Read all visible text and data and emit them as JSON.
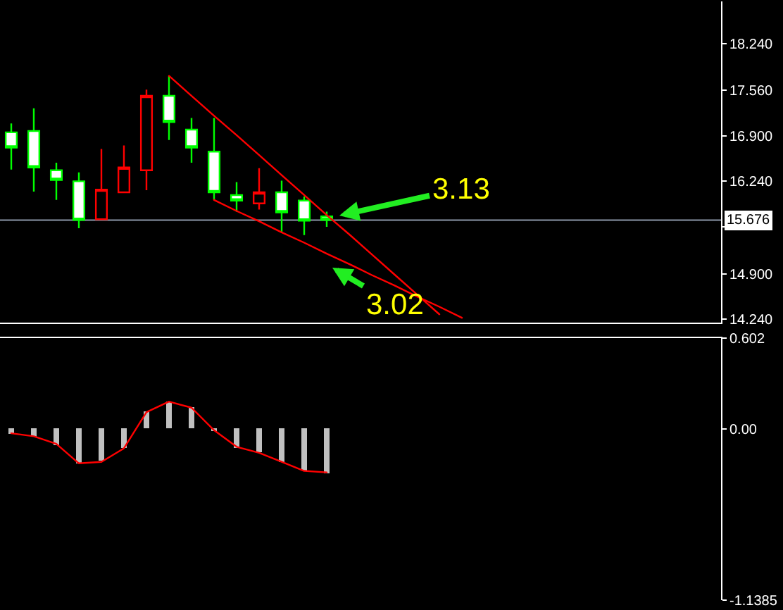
{
  "chart_data": [
    {
      "type": "candlestick",
      "categories": [
        null,
        null,
        null,
        null,
        null,
        null,
        null,
        null,
        null,
        null,
        null,
        null,
        null,
        null,
        null,
        null,
        null,
        null,
        null,
        null,
        null,
        null,
        null,
        null,
        null,
        null,
        null,
        null,
        null,
        null,
        null,
        null
      ],
      "ohlc": [
        [
          16.95,
          17.08,
          16.41,
          16.73
        ],
        [
          16.97,
          17.3,
          16.09,
          16.44
        ],
        [
          16.4,
          16.51,
          15.97,
          16.26
        ],
        [
          16.24,
          16.37,
          15.56,
          15.68
        ],
        [
          15.69,
          16.71,
          15.68,
          16.12
        ],
        [
          16.08,
          16.76,
          16.08,
          16.44
        ],
        [
          16.4,
          17.57,
          16.11,
          17.48
        ],
        [
          17.48,
          17.77,
          16.84,
          17.1
        ],
        [
          16.99,
          17.16,
          16.51,
          16.73
        ],
        [
          16.67,
          17.16,
          15.97,
          16.08
        ],
        [
          16.04,
          16.23,
          15.8,
          15.96
        ],
        [
          15.92,
          16.43,
          15.83,
          16.08
        ],
        [
          16.08,
          16.25,
          15.49,
          15.79
        ],
        [
          15.96,
          16.02,
          15.46,
          15.67
        ],
        [
          15.73,
          15.8,
          15.58,
          15.68
        ],
        null,
        null,
        null,
        null,
        null,
        null,
        null,
        null,
        null,
        null,
        null,
        null,
        null,
        null,
        null,
        null,
        null
      ],
      "colors": [
        "#00ff00",
        "#00ff00",
        "#00ff00",
        "#00ff00",
        "#ff0000",
        "#ff0000",
        "#ff0000",
        "#00ff00",
        "#00ff00",
        "#00ff00",
        "#00ff00",
        "#ff0000",
        "#00ff00",
        "#00ff00",
        "#00ff00",
        null,
        null,
        null,
        null,
        null,
        null,
        null,
        null,
        null,
        null,
        null,
        null,
        null,
        null,
        null,
        null,
        null
      ],
      "series": [
        {
          "type": "line",
          "color": "#ff0000",
          "values": [
            null,
            null,
            null,
            null,
            null,
            null,
            null,
            17.77,
            17.48,
            17.19,
            16.91,
            16.62,
            16.33,
            16.04,
            15.75,
            15.47,
            15.18,
            14.89,
            14.6,
            14.31,
            null,
            null,
            null,
            null,
            null,
            null,
            null,
            null,
            null,
            null,
            null,
            null
          ]
        },
        {
          "type": "line",
          "color": "#ff0000",
          "values": [
            null,
            null,
            null,
            null,
            null,
            null,
            null,
            null,
            null,
            15.97,
            15.81,
            15.66,
            15.5,
            15.35,
            15.19,
            15.04,
            14.88,
            14.73,
            14.57,
            14.42,
            14.26,
            null,
            null,
            null,
            null,
            null,
            null,
            null,
            null,
            null,
            null,
            null
          ]
        }
      ],
      "ylim": [
        14.19,
        18.85
      ],
      "yticks": [
        {
          "value": 18.24,
          "label": "18.240"
        },
        {
          "value": 17.56,
          "label": "17.560"
        },
        {
          "value": 16.9,
          "label": "16.900"
        },
        {
          "value": 16.24,
          "label": "16.240"
        },
        {
          "value": 15.58,
          "label": null
        },
        {
          "value": 14.9,
          "label": "14.900"
        },
        {
          "value": 14.24,
          "label": "14.240"
        }
      ],
      "ref_lines": [
        {
          "axis": "y",
          "value": 15.676,
          "label": "15.676",
          "color": "#8c96a8"
        }
      ],
      "annotations": [
        "3.13",
        "3.02"
      ],
      "tick_labels": "y"
    },
    {
      "type": "bar",
      "categories": [
        null,
        null,
        null,
        null,
        null,
        null,
        null,
        null,
        null,
        null,
        null,
        null,
        null,
        null,
        null,
        null,
        null,
        null,
        null,
        null,
        null,
        null,
        null,
        null,
        null,
        null,
        null,
        null,
        null,
        null,
        null,
        null
      ],
      "series": [
        {
          "type": "bar",
          "color": "#c0c0c0",
          "values": [
            -0.03,
            -0.05,
            -0.11,
            -0.23,
            -0.21,
            -0.13,
            0.12,
            0.18,
            0.14,
            -0.02,
            -0.13,
            -0.16,
            -0.22,
            -0.28,
            -0.3,
            null,
            null,
            null,
            null,
            null,
            null,
            null,
            null,
            null,
            null,
            null,
            null,
            null,
            null,
            null,
            null,
            null
          ]
        },
        {
          "type": "line",
          "color": "#ff0000",
          "values": [
            -0.03,
            -0.05,
            -0.1,
            -0.23,
            -0.22,
            -0.13,
            0.11,
            0.18,
            0.14,
            -0.01,
            -0.12,
            -0.16,
            -0.22,
            -0.28,
            -0.29,
            null,
            null,
            null,
            null,
            null,
            null,
            null,
            null,
            null,
            null,
            null,
            null,
            null,
            null,
            null,
            null,
            null
          ]
        }
      ],
      "ylim": [
        -1.1385,
        0.602
      ],
      "yticks": [
        0.602,
        {
          "value": 0,
          "label": "0.00"
        },
        -1.1385
      ],
      "tick_labels": "y"
    }
  ]
}
